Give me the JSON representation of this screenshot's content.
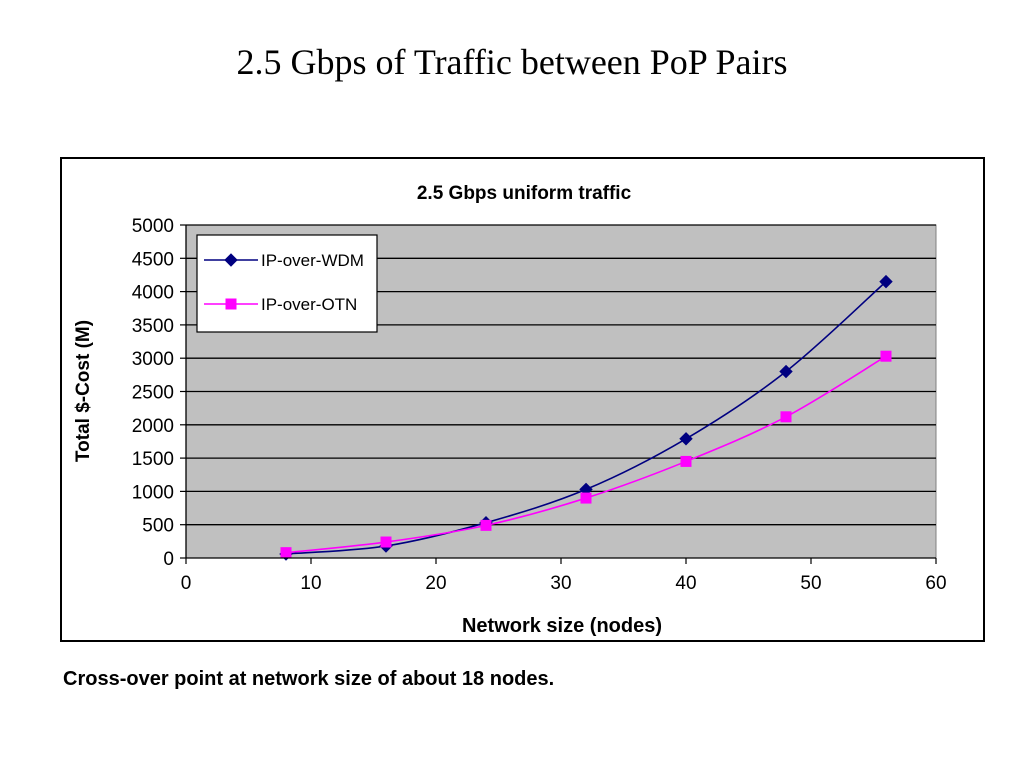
{
  "slide": {
    "title": "2.5 Gbps of Traffic between PoP Pairs",
    "caption": "Cross-over point at network size of about 18 nodes."
  },
  "colors": {
    "plot_background": "#c0c0c0",
    "gridline": "#000000",
    "series_wdm": "#000080",
    "series_otn": "#ff00ff"
  },
  "chart_data": {
    "type": "line",
    "title": "2.5 Gbps uniform traffic",
    "xlabel": "Network size (nodes)",
    "ylabel": "Total $-Cost (M)",
    "xlim": [
      0,
      60
    ],
    "ylim": [
      0,
      5000
    ],
    "xticks": [
      0,
      10,
      20,
      30,
      40,
      50,
      60
    ],
    "yticks": [
      0,
      500,
      1000,
      1500,
      2000,
      2500,
      3000,
      3500,
      4000,
      4500,
      5000
    ],
    "grid": "horizontal",
    "legend_position": "top-left",
    "series": [
      {
        "name": "IP-over-WDM",
        "marker": "diamond",
        "color": "#000080",
        "x": [
          8,
          16,
          24,
          32,
          40,
          48,
          56
        ],
        "y": [
          60,
          180,
          530,
          1030,
          1790,
          2800,
          4150
        ]
      },
      {
        "name": "IP-over-OTN",
        "marker": "square",
        "color": "#ff00ff",
        "x": [
          8,
          16,
          24,
          32,
          40,
          48,
          56
        ],
        "y": [
          80,
          240,
          490,
          900,
          1450,
          2120,
          3030
        ]
      }
    ]
  }
}
